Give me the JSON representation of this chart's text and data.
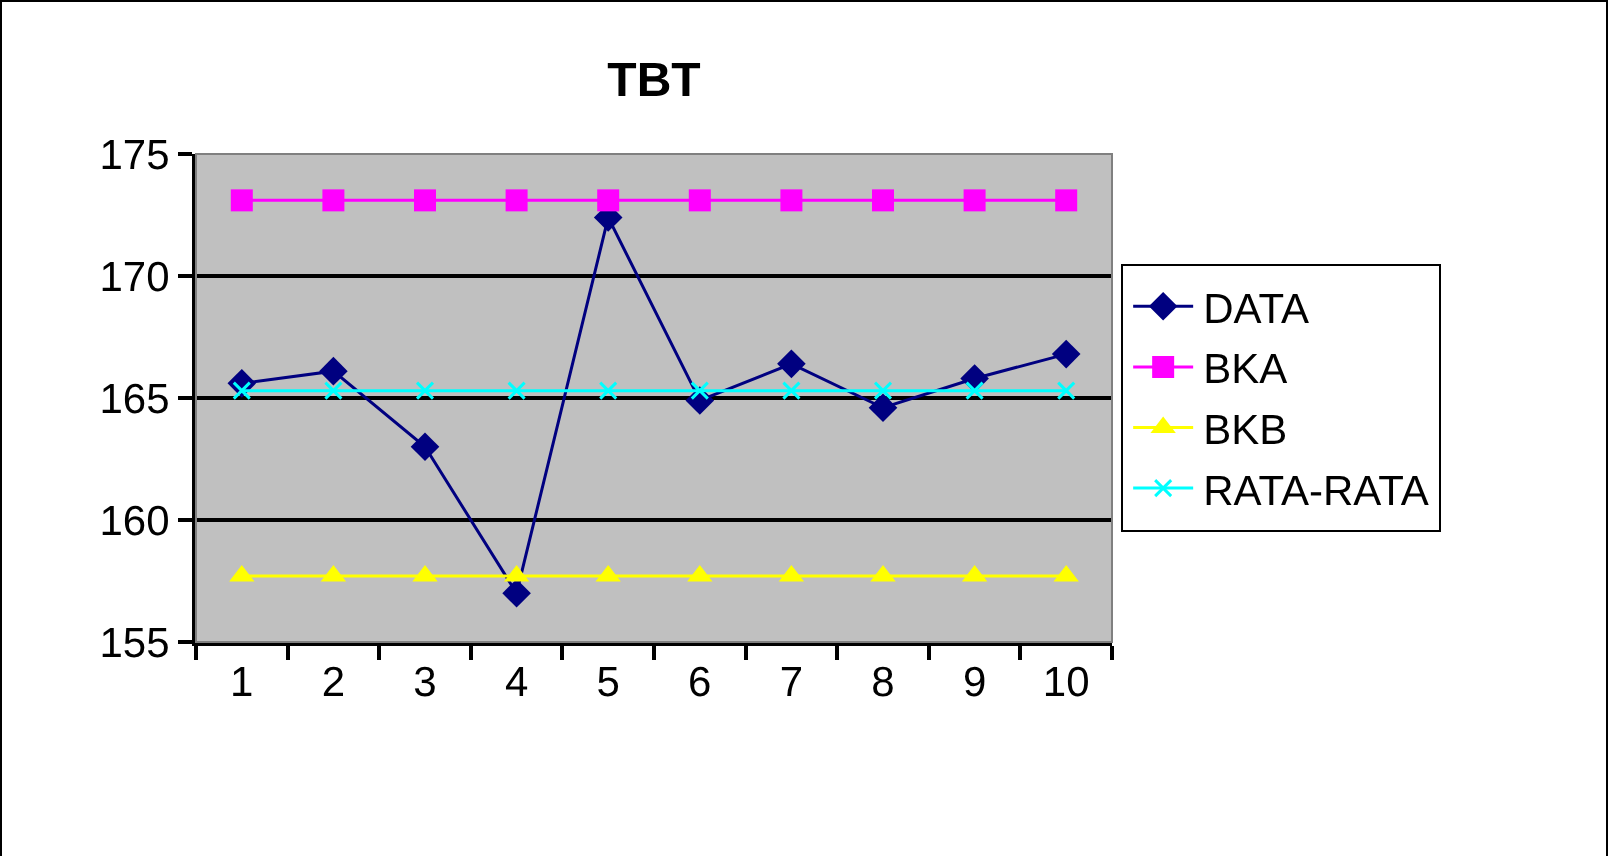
{
  "chart_data": {
    "type": "line",
    "title": "TBT",
    "categories": [
      "1",
      "2",
      "3",
      "4",
      "5",
      "6",
      "7",
      "8",
      "9",
      "10"
    ],
    "series": [
      {
        "name": "DATA",
        "color": "#000080",
        "marker": "diamond",
        "values": [
          165.6,
          166.1,
          163.0,
          157.0,
          172.4,
          164.9,
          166.4,
          164.6,
          165.8,
          166.8
        ]
      },
      {
        "name": "BKA",
        "color": "#ff00ff",
        "marker": "square",
        "values": [
          173.1,
          173.1,
          173.1,
          173.1,
          173.1,
          173.1,
          173.1,
          173.1,
          173.1,
          173.1
        ]
      },
      {
        "name": "BKB",
        "color": "#ffff00",
        "marker": "triangle",
        "values": [
          157.7,
          157.7,
          157.7,
          157.7,
          157.7,
          157.7,
          157.7,
          157.7,
          157.7,
          157.7
        ]
      },
      {
        "name": "RATA-RATA",
        "color": "#00ffff",
        "marker": "cross",
        "values": [
          165.3,
          165.3,
          165.3,
          165.3,
          165.3,
          165.3,
          165.3,
          165.3,
          165.3,
          165.3
        ]
      }
    ],
    "ylim": [
      155,
      175
    ],
    "yticks": [
      155,
      160,
      165,
      170,
      175
    ],
    "grid": "y",
    "legend": "right",
    "line_style": "solid"
  }
}
